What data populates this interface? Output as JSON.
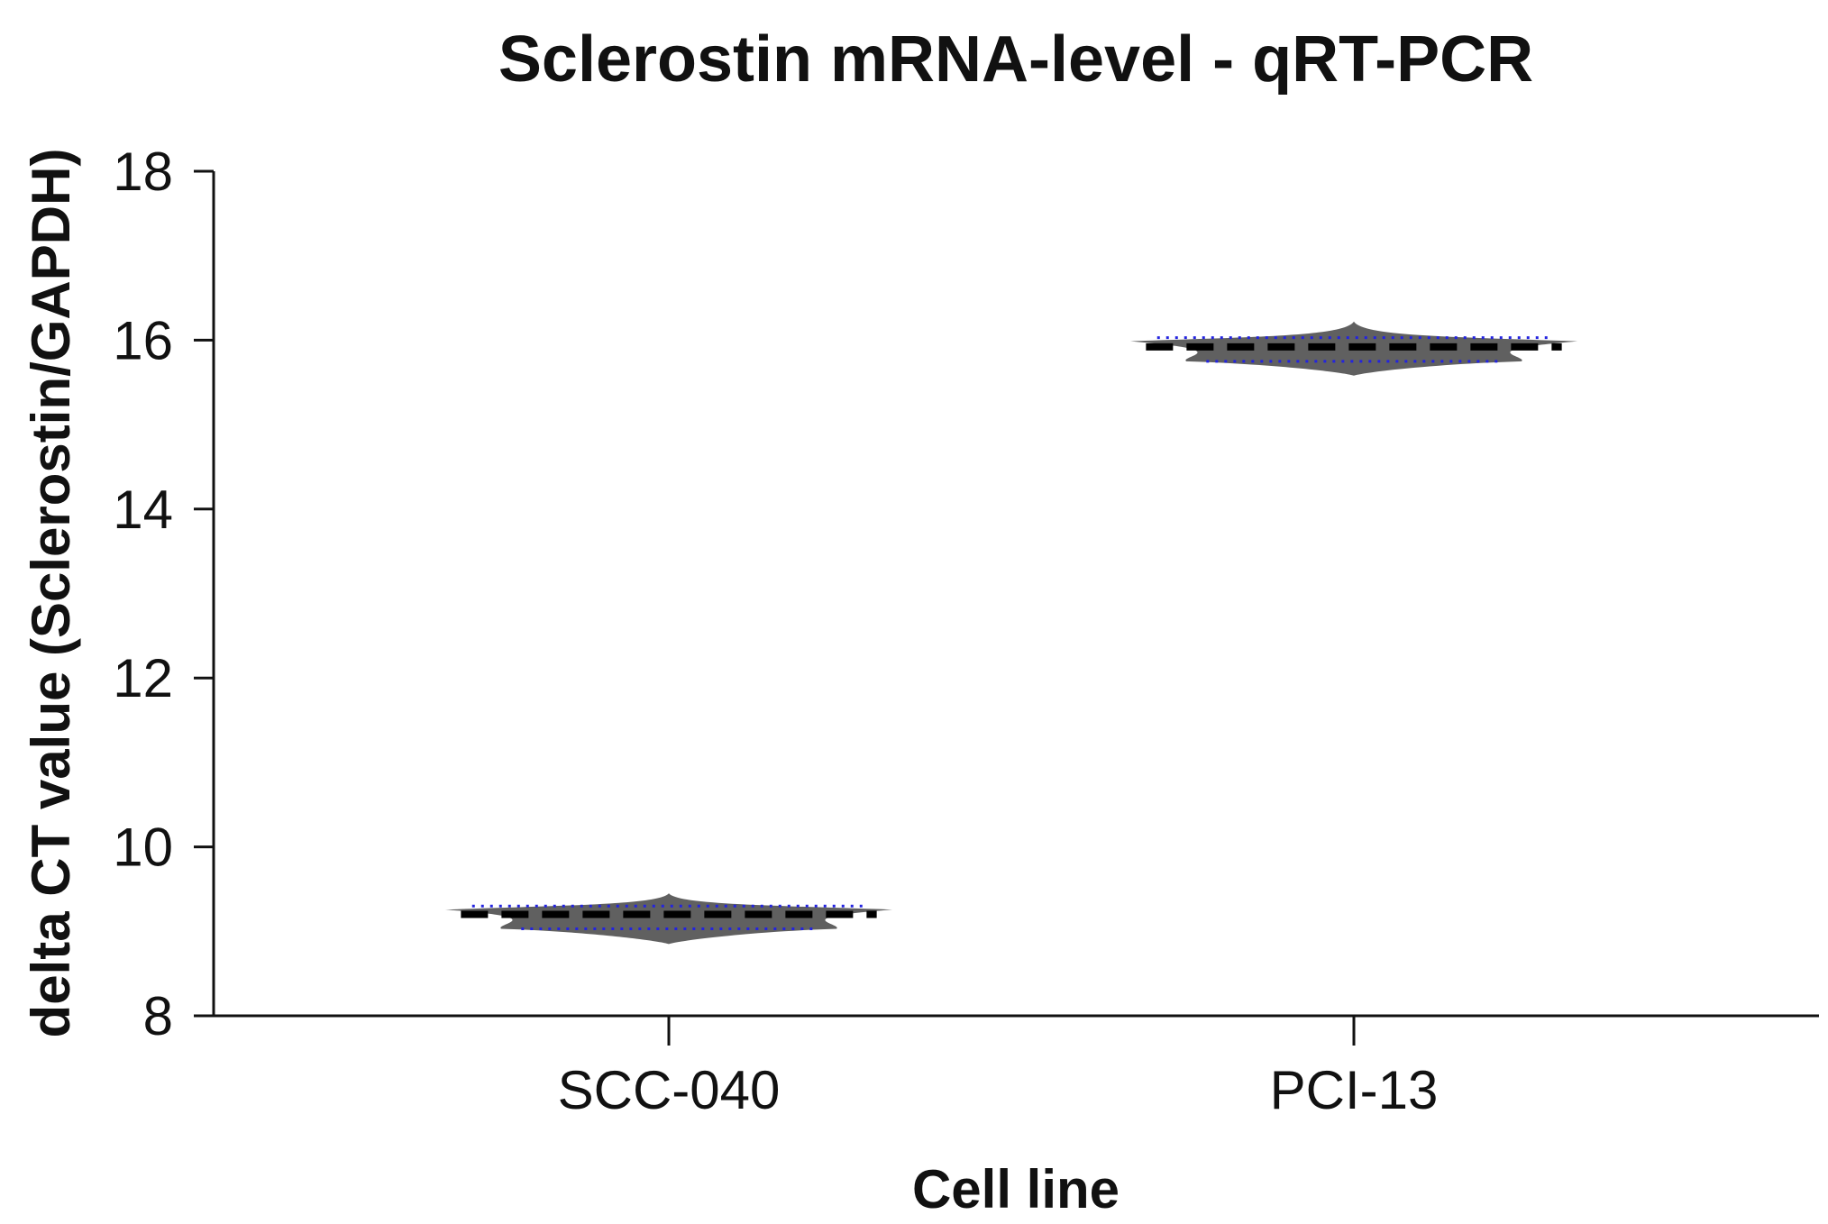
{
  "chart_data": {
    "type": "violin",
    "title": "Sclerostin mRNA-level - qRT-PCR",
    "xlabel": "Cell line",
    "ylabel": "delta CT value (Sclerostin/GAPDH)",
    "ylim": [
      8,
      18
    ],
    "yticks": [
      8,
      10,
      12,
      14,
      16,
      18
    ],
    "categories": [
      "SCC-040",
      "PCI-13"
    ],
    "violins": [
      {
        "category": "SCC-040",
        "min": 8.85,
        "q1": 9.03,
        "median": 9.2,
        "q3": 9.3,
        "max": 9.45
      },
      {
        "category": "PCI-13",
        "min": 15.58,
        "q1": 15.75,
        "median": 15.92,
        "q3": 16.03,
        "max": 16.22
      }
    ],
    "colors": {
      "fill": "#606060",
      "median_line": "#000000",
      "quartile_line": "#2323e0",
      "axis": "#111111"
    }
  }
}
